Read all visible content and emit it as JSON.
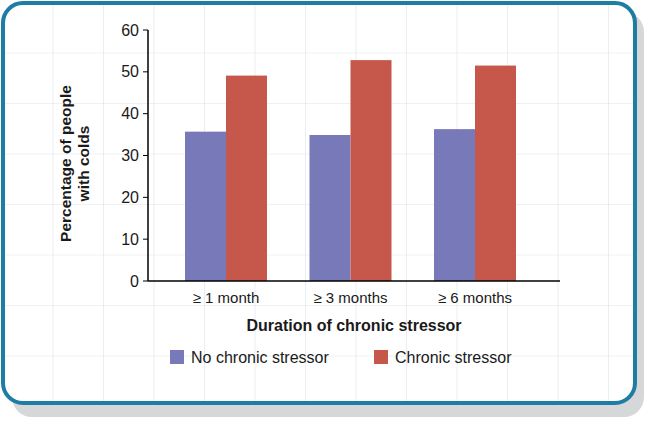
{
  "chart_data": {
    "type": "bar",
    "x_label": "Duration of chronic stressor",
    "y_label": "Percentage of people with colds",
    "categories": [
      "≥ 1 month",
      "≥ 3 months",
      "≥ 6 months"
    ],
    "series": [
      {
        "name": "No chronic stressor",
        "color": "#7879b9",
        "values": [
          35.7,
          34.9,
          36.3
        ]
      },
      {
        "name": "Chronic stressor",
        "color": "#c5584b",
        "values": [
          49.1,
          52.8,
          51.5
        ]
      }
    ],
    "ylim": [
      0,
      60
    ],
    "yticks": [
      0,
      10,
      20,
      30,
      40,
      50,
      60
    ],
    "grid": false,
    "legend": "bottom"
  }
}
